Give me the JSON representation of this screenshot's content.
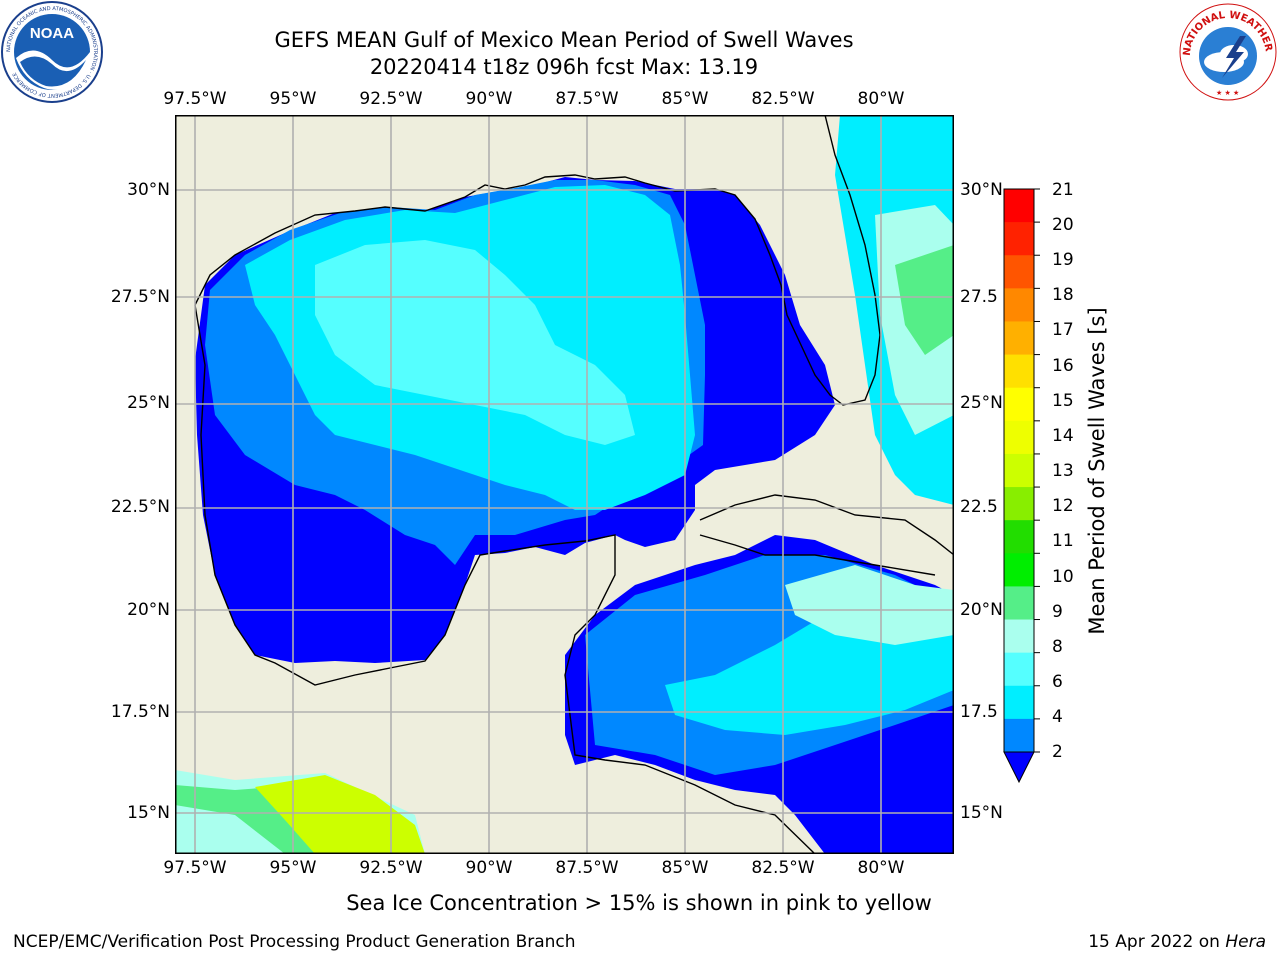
{
  "header": {
    "title_line1": "GEFS MEAN Gulf of Mexico Mean Period of Swell Waves",
    "title_line2": "20220414 t18z 096h fcst   Max: 13.19"
  },
  "logos": {
    "noaa_text": "NOAA",
    "noaa_ring_text": "NATIONAL OCEANIC AND ATMOSPHERIC ADMINISTRATION · U.S. DEPARTMENT OF COMMERCE",
    "nws_ring_text": "NATIONAL WEATHER SERVICE"
  },
  "map": {
    "lon_labels": [
      "97.5°W",
      "95°W",
      "92.5°W",
      "90°W",
      "87.5°W",
      "85°W",
      "82.5°W",
      "80°W"
    ],
    "lat_labels": [
      "30°N",
      "27.5°N",
      "25°N",
      "22.5°N",
      "20°N",
      "17.5°N",
      "15°N"
    ],
    "right_lat_labels": [
      "30°N",
      "27.5",
      "25°N",
      "22.5",
      "20°N",
      "17.5",
      "15°N"
    ],
    "colors": {
      "land": "#eeeedd",
      "grid": "#b0b0b0"
    }
  },
  "colorbar": {
    "label": "Mean Period of Swell Waves [s]",
    "ticks": [
      "21",
      "20",
      "19",
      "18",
      "17",
      "16",
      "15",
      "14",
      "13",
      "12",
      "11",
      "10",
      "9",
      "8",
      "6",
      "4",
      "2"
    ],
    "colors_top_to_bottom": [
      "#ff0000",
      "#ff2200",
      "#ff5500",
      "#ff8800",
      "#ffb000",
      "#ffe000",
      "#ffff00",
      "#eeff00",
      "#ccff00",
      "#88ee00",
      "#22dd00",
      "#00ee00",
      "#55ee88",
      "#aaffee",
      "#55ffff",
      "#00eeff",
      "#0088ff",
      "#0000ff"
    ]
  },
  "footer": {
    "note": "Sea Ice Concentration > 15% is shown in pink to yellow",
    "left": "NCEP/EMC/Verification Post Processing Product Generation Branch",
    "right_prefix": "15 Apr 2022 on ",
    "right_machine": "Hera"
  }
}
